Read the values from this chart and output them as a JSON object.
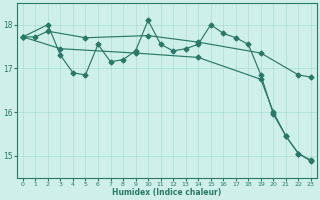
{
  "xlabel": "Humidex (Indice chaleur)",
  "ylabel": "",
  "bg_color": "#cff0ea",
  "line_color": "#2a7868",
  "grid_color": "#aaddd5",
  "xlim": [
    -0.5,
    23.5
  ],
  "ylim": [
    14.5,
    18.5
  ],
  "yticks": [
    15,
    16,
    17,
    18
  ],
  "xticks": [
    0,
    1,
    2,
    3,
    4,
    5,
    6,
    7,
    8,
    9,
    10,
    11,
    12,
    13,
    14,
    15,
    16,
    17,
    18,
    19,
    20,
    21,
    22,
    23
  ],
  "line1_x": [
    0,
    1,
    2,
    5,
    10,
    14,
    19,
    22,
    23
  ],
  "line1_y": [
    17.72,
    17.72,
    17.85,
    17.7,
    17.75,
    17.6,
    17.35,
    16.85,
    16.8
  ],
  "line2_x": [
    0,
    2,
    3,
    4,
    5,
    6,
    7,
    8,
    9,
    10,
    11,
    12,
    13,
    14,
    15,
    16,
    17,
    18,
    19,
    20,
    21,
    22,
    23
  ],
  "line2_y": [
    17.72,
    18.0,
    17.3,
    16.9,
    16.85,
    17.55,
    17.15,
    17.2,
    17.4,
    18.1,
    17.55,
    17.4,
    17.45,
    17.55,
    18.0,
    17.8,
    17.7,
    17.55,
    16.85,
    15.95,
    15.45,
    15.05,
    14.9
  ],
  "line3_x": [
    0,
    3,
    9,
    14,
    19,
    20,
    21,
    22,
    23
  ],
  "line3_y": [
    17.72,
    17.45,
    17.35,
    17.25,
    16.75,
    16.0,
    15.45,
    15.05,
    14.88
  ]
}
